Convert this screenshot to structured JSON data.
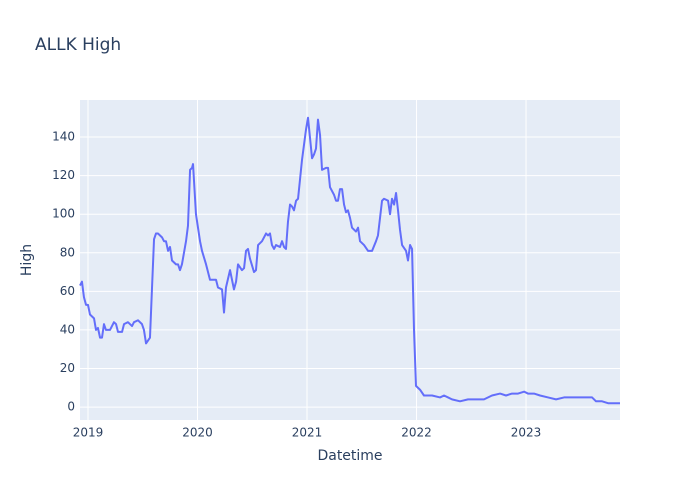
{
  "chart_data": {
    "type": "line",
    "title": "ALLK High",
    "x_label": "Datetime",
    "y_label": "High",
    "x": [
      2018.927,
      2018.945,
      2018.963,
      2018.982,
      2019.0,
      2019.018,
      2019.055,
      2019.073,
      2019.091,
      2019.11,
      2019.128,
      2019.146,
      2019.164,
      2019.201,
      2019.237,
      2019.256,
      2019.274,
      2019.311,
      2019.329,
      2019.365,
      2019.402,
      2019.42,
      2019.457,
      2019.493,
      2019.511,
      2019.53,
      2019.566,
      2019.584,
      2019.603,
      2019.621,
      2019.639,
      2019.676,
      2019.694,
      2019.712,
      2019.731,
      2019.749,
      2019.767,
      2019.804,
      2019.822,
      2019.84,
      2019.858,
      2019.895,
      2019.913,
      2019.932,
      2019.95,
      2019.959,
      2019.986,
      2020.023,
      2020.041,
      2020.078,
      2020.114,
      2020.151,
      2020.169,
      2020.187,
      2020.224,
      2020.242,
      2020.26,
      2020.297,
      2020.333,
      2020.352,
      2020.37,
      2020.406,
      2020.425,
      2020.443,
      2020.461,
      2020.479,
      2020.516,
      2020.534,
      2020.553,
      2020.589,
      2020.626,
      2020.644,
      2020.662,
      2020.68,
      2020.699,
      2020.717,
      2020.753,
      2020.772,
      2020.79,
      2020.808,
      2020.826,
      2020.845,
      2020.863,
      2020.881,
      2020.9,
      2020.918,
      2020.936,
      2020.954,
      2020.991,
      2021.009,
      2021.046,
      2021.064,
      2021.082,
      2021.1,
      2021.119,
      2021.137,
      2021.174,
      2021.192,
      2021.21,
      2021.247,
      2021.265,
      2021.283,
      2021.301,
      2021.32,
      2021.338,
      2021.356,
      2021.374,
      2021.393,
      2021.411,
      2021.447,
      2021.466,
      2021.484,
      2021.521,
      2021.557,
      2021.594,
      2021.63,
      2021.648,
      2021.685,
      2021.703,
      2021.74,
      2021.758,
      2021.776,
      2021.795,
      2021.813,
      2021.831,
      2021.849,
      2021.868,
      2021.904,
      2021.922,
      2021.941,
      2021.959,
      2021.977,
      2021.995,
      2022.032,
      2022.068,
      2022.142,
      2022.215,
      2022.251,
      2022.288,
      2022.324,
      2022.397,
      2022.47,
      2022.543,
      2022.616,
      2022.689,
      2022.763,
      2022.817,
      2022.872,
      2022.927,
      2022.982,
      2023.018,
      2023.073,
      2023.128,
      2023.201,
      2023.274,
      2023.347,
      2023.42,
      2023.493,
      2023.566,
      2023.603,
      2023.639,
      2023.694,
      2023.749,
      2023.804,
      2023.858
    ],
    "series": [
      {
        "name": "High",
        "color": "#636efa",
        "values": [
          63,
          65,
          57,
          53,
          53,
          48,
          46,
          40,
          41,
          36,
          36,
          43,
          40,
          40,
          44,
          43,
          39,
          39,
          43,
          44,
          42,
          44,
          45,
          43,
          40,
          33,
          36,
          61,
          87,
          90,
          90,
          88,
          86,
          86,
          81,
          83,
          76,
          74,
          74,
          71,
          74,
          86,
          94,
          123,
          124,
          126,
          100,
          86,
          81,
          74,
          66,
          66,
          66,
          62,
          61,
          49,
          62,
          71,
          61,
          65,
          74,
          71,
          72,
          81,
          82,
          77,
          70,
          71,
          84,
          86,
          90,
          89,
          90,
          84,
          82,
          84,
          83,
          86,
          83,
          82,
          96,
          105,
          104,
          102,
          107,
          108,
          118,
          128,
          144,
          150,
          129,
          131,
          134,
          149,
          141,
          123,
          124,
          124,
          114,
          110,
          107,
          107,
          113,
          113,
          105,
          101,
          102,
          98,
          93,
          91,
          93,
          86,
          84,
          81,
          81,
          86,
          89,
          107,
          108,
          107,
          100,
          108,
          105,
          111,
          102,
          92,
          84,
          81,
          76,
          84,
          82,
          40,
          11,
          9,
          6,
          6,
          5,
          6,
          5,
          4,
          3,
          4,
          4,
          4,
          6,
          7,
          6,
          7,
          7,
          8,
          7,
          7,
          6,
          5,
          4,
          5,
          5,
          5,
          5,
          5,
          3,
          3,
          2,
          2,
          2
        ]
      }
    ],
    "xlim": [
      2018.927,
      2023.858
    ],
    "xticks": [
      2019,
      2020,
      2021,
      2022,
      2023
    ],
    "ylim": [
      -6.7,
      159.2
    ],
    "yticks": [
      0,
      20,
      40,
      60,
      80,
      100,
      120,
      140
    ],
    "grid": true
  }
}
